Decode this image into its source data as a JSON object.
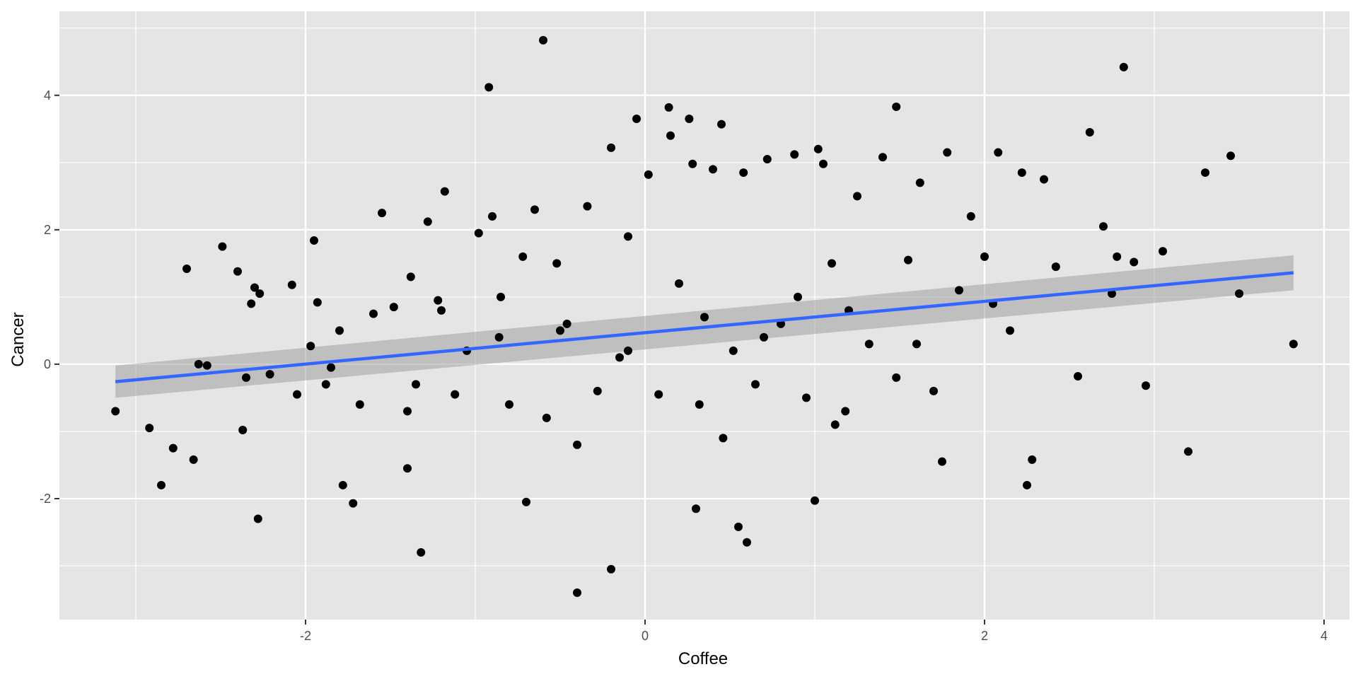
{
  "chart_data": {
    "type": "scatter",
    "title": "",
    "xlabel": "Coffee",
    "ylabel": "Cancer",
    "xlim": [
      -3.45,
      4.15
    ],
    "ylim": [
      -3.8,
      5.25
    ],
    "x_ticks": [
      -2,
      0,
      2,
      4
    ],
    "y_ticks": [
      -2,
      0,
      2,
      4
    ],
    "x_tick_labels": [
      "-2",
      "0",
      "2",
      "4"
    ],
    "y_tick_labels": [
      "-2",
      "0",
      "2",
      "4"
    ],
    "grid": true,
    "legend": "none",
    "colors": {
      "panel": "#e5e5e5",
      "grid": "#ffffff",
      "points": "#000000",
      "fit_line": "#3366ff",
      "ribbon": "#999999"
    },
    "points": {
      "x": [
        -3.12,
        -2.92,
        -2.85,
        -2.78,
        -2.7,
        -2.66,
        -2.63,
        -2.58,
        -2.49,
        -2.4,
        -2.37,
        -2.35,
        -2.32,
        -2.3,
        -2.27,
        -2.21,
        -2.08,
        -2.05,
        -1.97,
        -1.95,
        -1.93,
        -1.88,
        -1.85,
        -1.8,
        -1.72,
        -1.68,
        -1.6,
        -1.55,
        -1.48,
        -1.4,
        -1.38,
        -1.35,
        -1.28,
        -1.22,
        -1.18,
        -1.12,
        -1.05,
        -0.98,
        -0.9,
        -0.86,
        -0.8,
        -0.72,
        -0.65,
        -0.58,
        -0.52,
        -0.46,
        -0.4,
        -0.34,
        -0.28,
        -0.2,
        -0.15,
        -0.1,
        -0.05,
        0.02,
        0.08,
        0.14,
        0.2,
        0.26,
        0.32,
        0.4,
        0.46,
        0.52,
        0.58,
        0.65,
        0.72,
        0.8,
        0.88,
        0.95,
        1.02,
        1.1,
        1.18,
        1.25,
        1.32,
        1.4,
        1.48,
        1.55,
        1.62,
        1.7,
        1.78,
        1.85,
        1.92,
        2.0,
        2.08,
        2.15,
        2.22,
        2.28,
        2.35,
        2.42,
        2.55,
        2.62,
        2.7,
        2.78,
        2.82,
        2.88,
        2.95,
        3.05,
        3.2,
        3.3,
        3.45,
        3.5,
        3.82,
        -0.6,
        -0.92,
        0.15,
        0.28,
        0.45,
        1.05,
        1.48,
        2.75,
        -1.4,
        -0.4,
        -0.2,
        0.55,
        0.6,
        1.0,
        -2.28,
        -1.78,
        -1.32,
        -0.7,
        0.3,
        1.12,
        1.75,
        2.25,
        -1.2,
        -0.85,
        -0.5,
        -0.1,
        0.35,
        0.7,
        0.9,
        1.2,
        1.6,
        2.05
      ],
      "y": [
        -0.7,
        -0.95,
        -1.8,
        -1.25,
        1.42,
        -1.42,
        0.0,
        -0.02,
        1.75,
        1.38,
        -0.98,
        -0.2,
        0.9,
        1.14,
        1.05,
        -0.15,
        1.18,
        -0.45,
        0.27,
        1.84,
        0.92,
        -0.3,
        -0.05,
        0.5,
        -2.07,
        -0.6,
        0.75,
        2.25,
        0.85,
        -0.7,
        1.3,
        -0.3,
        2.12,
        0.95,
        2.57,
        -0.45,
        0.2,
        1.95,
        2.2,
        0.4,
        -0.6,
        1.6,
        2.3,
        -0.8,
        1.5,
        0.6,
        -1.2,
        2.35,
        -0.4,
        3.22,
        0.1,
        1.9,
        3.65,
        2.82,
        -0.45,
        3.82,
        1.2,
        3.65,
        -0.6,
        2.9,
        -1.1,
        0.2,
        2.85,
        -0.3,
        3.05,
        0.6,
        3.12,
        -0.5,
        3.2,
        1.5,
        -0.7,
        2.5,
        0.3,
        3.08,
        -0.2,
        1.55,
        2.7,
        -0.4,
        3.15,
        1.1,
        2.2,
        1.6,
        3.15,
        0.5,
        2.85,
        -1.42,
        2.75,
        1.45,
        -0.18,
        3.45,
        2.05,
        1.6,
        4.42,
        1.52,
        -0.32,
        1.68,
        -1.3,
        2.85,
        3.1,
        1.05,
        0.3,
        4.82,
        4.12,
        3.4,
        2.98,
        3.57,
        2.98,
        3.83,
        1.05,
        -1.55,
        -3.4,
        -3.05,
        -2.42,
        -2.65,
        -2.03,
        -2.3,
        -1.8,
        -2.8,
        -2.05,
        -2.15,
        -0.9,
        -1.45,
        -1.8,
        0.8,
        1.0,
        0.5,
        0.2,
        0.7,
        0.4,
        1.0,
        0.8,
        0.3,
        0.9
      ]
    },
    "fit_line": {
      "x": [
        -3.12,
        3.82
      ],
      "y": [
        -0.26,
        1.36
      ],
      "ci_lower": [
        -0.5,
        1.1
      ],
      "ci_upper": [
        -0.02,
        1.62
      ]
    }
  }
}
